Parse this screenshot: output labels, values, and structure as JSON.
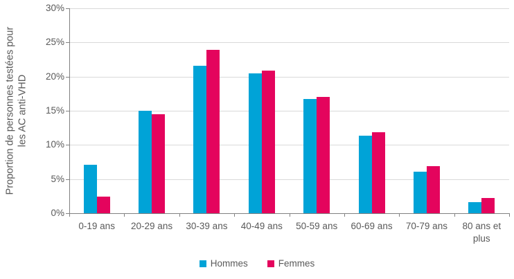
{
  "chart_data": {
    "type": "bar",
    "title": "",
    "categories": [
      "0-19 ans",
      "20-29 ans",
      "30-39 ans",
      "40-49 ans",
      "50-59 ans",
      "60-69 ans",
      "70-79 ans",
      "80 ans et plus"
    ],
    "series": [
      {
        "name": "Hommes",
        "color": "#00A3D7",
        "values": [
          7.1,
          15.0,
          21.6,
          20.5,
          16.7,
          11.4,
          6.1,
          1.6
        ]
      },
      {
        "name": "Femmes",
        "color": "#E4045D",
        "values": [
          2.4,
          14.5,
          23.9,
          20.9,
          17.0,
          11.9,
          6.9,
          2.2
        ]
      }
    ],
    "ylabel": "Proportion de personnes testées pour les AC anti-VHD",
    "ylabel_lines": [
      "Proportion de personnes testées pour",
      "les AC anti-VHD"
    ],
    "xlabel": "",
    "ylim": [
      0,
      30
    ],
    "ytick_step": 5,
    "ytick_labels": [
      "0%",
      "5%",
      "10%",
      "15%",
      "20%",
      "25%",
      "30%"
    ],
    "grid": true,
    "legend_position": "bottom-center",
    "colors": {
      "grid": "#D9D9D9",
      "axis": "#808080",
      "text": "#595959",
      "background": "#FFFFFF"
    }
  },
  "legend": {
    "items": [
      {
        "label": "Hommes",
        "color": "#00A3D7"
      },
      {
        "label": "Femmes",
        "color": "#E4045D"
      }
    ]
  }
}
